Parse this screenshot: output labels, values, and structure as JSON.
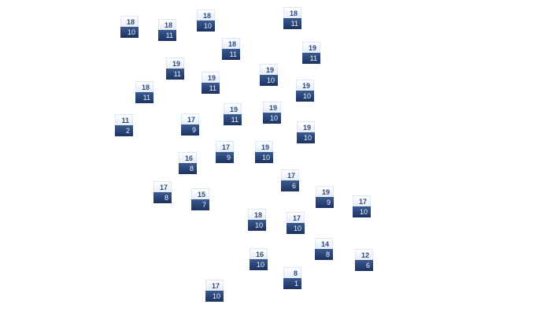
{
  "tiles": [
    {
      "top": "18",
      "bottom": "10"
    },
    {
      "top": "18",
      "bottom": "11"
    },
    {
      "top": "18",
      "bottom": "10"
    },
    {
      "top": "18",
      "bottom": "11"
    },
    {
      "top": "18",
      "bottom": "11"
    },
    {
      "top": "19",
      "bottom": "11"
    },
    {
      "top": "19",
      "bottom": "11"
    },
    {
      "top": "19",
      "bottom": "10"
    },
    {
      "top": "19",
      "bottom": "11"
    },
    {
      "top": "19",
      "bottom": "10"
    },
    {
      "top": "18",
      "bottom": "11"
    },
    {
      "top": "11",
      "bottom": "2"
    },
    {
      "top": "17",
      "bottom": "9"
    },
    {
      "top": "19",
      "bottom": "11"
    },
    {
      "top": "19",
      "bottom": "10"
    },
    {
      "top": "19",
      "bottom": "10"
    },
    {
      "top": "17",
      "bottom": "9"
    },
    {
      "top": "19",
      "bottom": "10"
    },
    {
      "top": "16",
      "bottom": "8"
    },
    {
      "top": "17",
      "bottom": "6"
    },
    {
      "top": "17",
      "bottom": "8"
    },
    {
      "top": "15",
      "bottom": "7"
    },
    {
      "top": "19",
      "bottom": "9"
    },
    {
      "top": "17",
      "bottom": "10"
    },
    {
      "top": "18",
      "bottom": "10"
    },
    {
      "top": "17",
      "bottom": "10"
    },
    {
      "top": "14",
      "bottom": "8"
    },
    {
      "top": "12",
      "bottom": "6"
    },
    {
      "top": "16",
      "bottom": "10"
    },
    {
      "top": "8",
      "bottom": "1"
    },
    {
      "top": "17",
      "bottom": "10"
    }
  ]
}
